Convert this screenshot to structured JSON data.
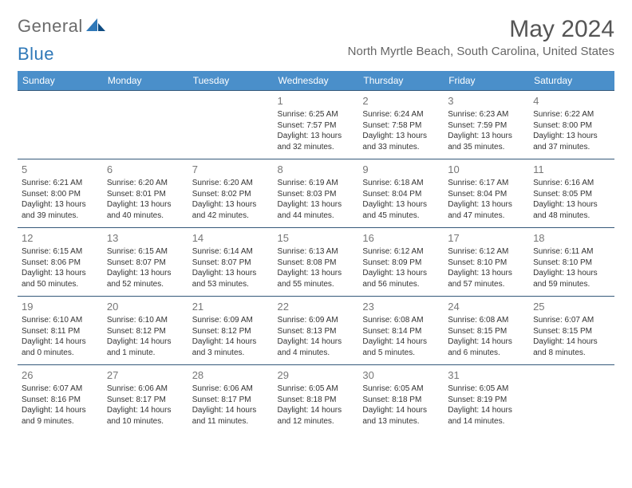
{
  "logo": {
    "part1": "General",
    "part2": "Blue"
  },
  "title": "May 2024",
  "location": "North Myrtle Beach, South Carolina, United States",
  "colors": {
    "header_bg": "#4a8fca",
    "header_text": "#ffffff",
    "border": "#35597a",
    "daynum": "#777777",
    "body_text": "#333333",
    "logo_gray": "#6b6b6b",
    "logo_blue": "#2f78b8"
  },
  "weekdays": [
    "Sunday",
    "Monday",
    "Tuesday",
    "Wednesday",
    "Thursday",
    "Friday",
    "Saturday"
  ],
  "weeks": [
    [
      {
        "day": "",
        "sunrise": "",
        "sunset": "",
        "daylight1": "",
        "daylight2": ""
      },
      {
        "day": "",
        "sunrise": "",
        "sunset": "",
        "daylight1": "",
        "daylight2": ""
      },
      {
        "day": "",
        "sunrise": "",
        "sunset": "",
        "daylight1": "",
        "daylight2": ""
      },
      {
        "day": "1",
        "sunrise": "Sunrise: 6:25 AM",
        "sunset": "Sunset: 7:57 PM",
        "daylight1": "Daylight: 13 hours",
        "daylight2": "and 32 minutes."
      },
      {
        "day": "2",
        "sunrise": "Sunrise: 6:24 AM",
        "sunset": "Sunset: 7:58 PM",
        "daylight1": "Daylight: 13 hours",
        "daylight2": "and 33 minutes."
      },
      {
        "day": "3",
        "sunrise": "Sunrise: 6:23 AM",
        "sunset": "Sunset: 7:59 PM",
        "daylight1": "Daylight: 13 hours",
        "daylight2": "and 35 minutes."
      },
      {
        "day": "4",
        "sunrise": "Sunrise: 6:22 AM",
        "sunset": "Sunset: 8:00 PM",
        "daylight1": "Daylight: 13 hours",
        "daylight2": "and 37 minutes."
      }
    ],
    [
      {
        "day": "5",
        "sunrise": "Sunrise: 6:21 AM",
        "sunset": "Sunset: 8:00 PM",
        "daylight1": "Daylight: 13 hours",
        "daylight2": "and 39 minutes."
      },
      {
        "day": "6",
        "sunrise": "Sunrise: 6:20 AM",
        "sunset": "Sunset: 8:01 PM",
        "daylight1": "Daylight: 13 hours",
        "daylight2": "and 40 minutes."
      },
      {
        "day": "7",
        "sunrise": "Sunrise: 6:20 AM",
        "sunset": "Sunset: 8:02 PM",
        "daylight1": "Daylight: 13 hours",
        "daylight2": "and 42 minutes."
      },
      {
        "day": "8",
        "sunrise": "Sunrise: 6:19 AM",
        "sunset": "Sunset: 8:03 PM",
        "daylight1": "Daylight: 13 hours",
        "daylight2": "and 44 minutes."
      },
      {
        "day": "9",
        "sunrise": "Sunrise: 6:18 AM",
        "sunset": "Sunset: 8:04 PM",
        "daylight1": "Daylight: 13 hours",
        "daylight2": "and 45 minutes."
      },
      {
        "day": "10",
        "sunrise": "Sunrise: 6:17 AM",
        "sunset": "Sunset: 8:04 PM",
        "daylight1": "Daylight: 13 hours",
        "daylight2": "and 47 minutes."
      },
      {
        "day": "11",
        "sunrise": "Sunrise: 6:16 AM",
        "sunset": "Sunset: 8:05 PM",
        "daylight1": "Daylight: 13 hours",
        "daylight2": "and 48 minutes."
      }
    ],
    [
      {
        "day": "12",
        "sunrise": "Sunrise: 6:15 AM",
        "sunset": "Sunset: 8:06 PM",
        "daylight1": "Daylight: 13 hours",
        "daylight2": "and 50 minutes."
      },
      {
        "day": "13",
        "sunrise": "Sunrise: 6:15 AM",
        "sunset": "Sunset: 8:07 PM",
        "daylight1": "Daylight: 13 hours",
        "daylight2": "and 52 minutes."
      },
      {
        "day": "14",
        "sunrise": "Sunrise: 6:14 AM",
        "sunset": "Sunset: 8:07 PM",
        "daylight1": "Daylight: 13 hours",
        "daylight2": "and 53 minutes."
      },
      {
        "day": "15",
        "sunrise": "Sunrise: 6:13 AM",
        "sunset": "Sunset: 8:08 PM",
        "daylight1": "Daylight: 13 hours",
        "daylight2": "and 55 minutes."
      },
      {
        "day": "16",
        "sunrise": "Sunrise: 6:12 AM",
        "sunset": "Sunset: 8:09 PM",
        "daylight1": "Daylight: 13 hours",
        "daylight2": "and 56 minutes."
      },
      {
        "day": "17",
        "sunrise": "Sunrise: 6:12 AM",
        "sunset": "Sunset: 8:10 PM",
        "daylight1": "Daylight: 13 hours",
        "daylight2": "and 57 minutes."
      },
      {
        "day": "18",
        "sunrise": "Sunrise: 6:11 AM",
        "sunset": "Sunset: 8:10 PM",
        "daylight1": "Daylight: 13 hours",
        "daylight2": "and 59 minutes."
      }
    ],
    [
      {
        "day": "19",
        "sunrise": "Sunrise: 6:10 AM",
        "sunset": "Sunset: 8:11 PM",
        "daylight1": "Daylight: 14 hours",
        "daylight2": "and 0 minutes."
      },
      {
        "day": "20",
        "sunrise": "Sunrise: 6:10 AM",
        "sunset": "Sunset: 8:12 PM",
        "daylight1": "Daylight: 14 hours",
        "daylight2": "and 1 minute."
      },
      {
        "day": "21",
        "sunrise": "Sunrise: 6:09 AM",
        "sunset": "Sunset: 8:12 PM",
        "daylight1": "Daylight: 14 hours",
        "daylight2": "and 3 minutes."
      },
      {
        "day": "22",
        "sunrise": "Sunrise: 6:09 AM",
        "sunset": "Sunset: 8:13 PM",
        "daylight1": "Daylight: 14 hours",
        "daylight2": "and 4 minutes."
      },
      {
        "day": "23",
        "sunrise": "Sunrise: 6:08 AM",
        "sunset": "Sunset: 8:14 PM",
        "daylight1": "Daylight: 14 hours",
        "daylight2": "and 5 minutes."
      },
      {
        "day": "24",
        "sunrise": "Sunrise: 6:08 AM",
        "sunset": "Sunset: 8:15 PM",
        "daylight1": "Daylight: 14 hours",
        "daylight2": "and 6 minutes."
      },
      {
        "day": "25",
        "sunrise": "Sunrise: 6:07 AM",
        "sunset": "Sunset: 8:15 PM",
        "daylight1": "Daylight: 14 hours",
        "daylight2": "and 8 minutes."
      }
    ],
    [
      {
        "day": "26",
        "sunrise": "Sunrise: 6:07 AM",
        "sunset": "Sunset: 8:16 PM",
        "daylight1": "Daylight: 14 hours",
        "daylight2": "and 9 minutes."
      },
      {
        "day": "27",
        "sunrise": "Sunrise: 6:06 AM",
        "sunset": "Sunset: 8:17 PM",
        "daylight1": "Daylight: 14 hours",
        "daylight2": "and 10 minutes."
      },
      {
        "day": "28",
        "sunrise": "Sunrise: 6:06 AM",
        "sunset": "Sunset: 8:17 PM",
        "daylight1": "Daylight: 14 hours",
        "daylight2": "and 11 minutes."
      },
      {
        "day": "29",
        "sunrise": "Sunrise: 6:05 AM",
        "sunset": "Sunset: 8:18 PM",
        "daylight1": "Daylight: 14 hours",
        "daylight2": "and 12 minutes."
      },
      {
        "day": "30",
        "sunrise": "Sunrise: 6:05 AM",
        "sunset": "Sunset: 8:18 PM",
        "daylight1": "Daylight: 14 hours",
        "daylight2": "and 13 minutes."
      },
      {
        "day": "31",
        "sunrise": "Sunrise: 6:05 AM",
        "sunset": "Sunset: 8:19 PM",
        "daylight1": "Daylight: 14 hours",
        "daylight2": "and 14 minutes."
      },
      {
        "day": "",
        "sunrise": "",
        "sunset": "",
        "daylight1": "",
        "daylight2": ""
      }
    ]
  ]
}
